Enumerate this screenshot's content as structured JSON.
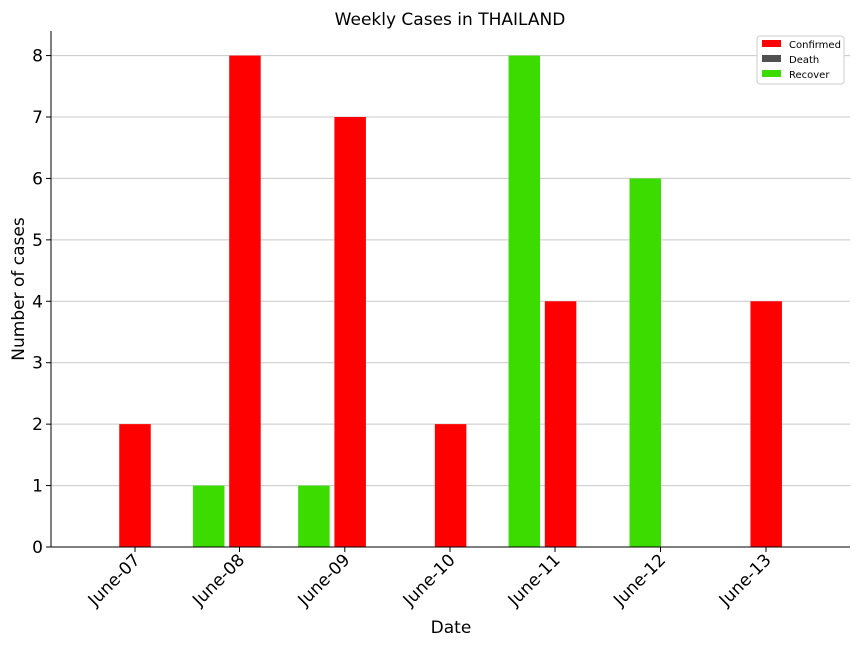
{
  "chart_data": {
    "type": "bar",
    "title": "Weekly Cases in THAILAND",
    "xlabel": "Date",
    "ylabel": "Number of cases",
    "categories": [
      "June-07",
      "June-08",
      "June-09",
      "June-10",
      "June-11",
      "June-12",
      "June-13"
    ],
    "series": [
      {
        "name": "Confirmed",
        "color": "#ff0000",
        "values": [
          2,
          8,
          7,
          2,
          4,
          0,
          4
        ]
      },
      {
        "name": "Death",
        "color": "#505050",
        "values": [
          0,
          0,
          0,
          0,
          0,
          0,
          0
        ]
      },
      {
        "name": "Recover",
        "color": "#3cdc00",
        "values": [
          0,
          1,
          1,
          0,
          8,
          6,
          0
        ]
      }
    ],
    "ylim": [
      0,
      8.4
    ],
    "yticks": [
      0,
      1,
      2,
      3,
      4,
      5,
      6,
      7,
      8
    ],
    "grid": "horizontal",
    "legend_position": "top-right",
    "xtick_rotation": "45deg"
  }
}
